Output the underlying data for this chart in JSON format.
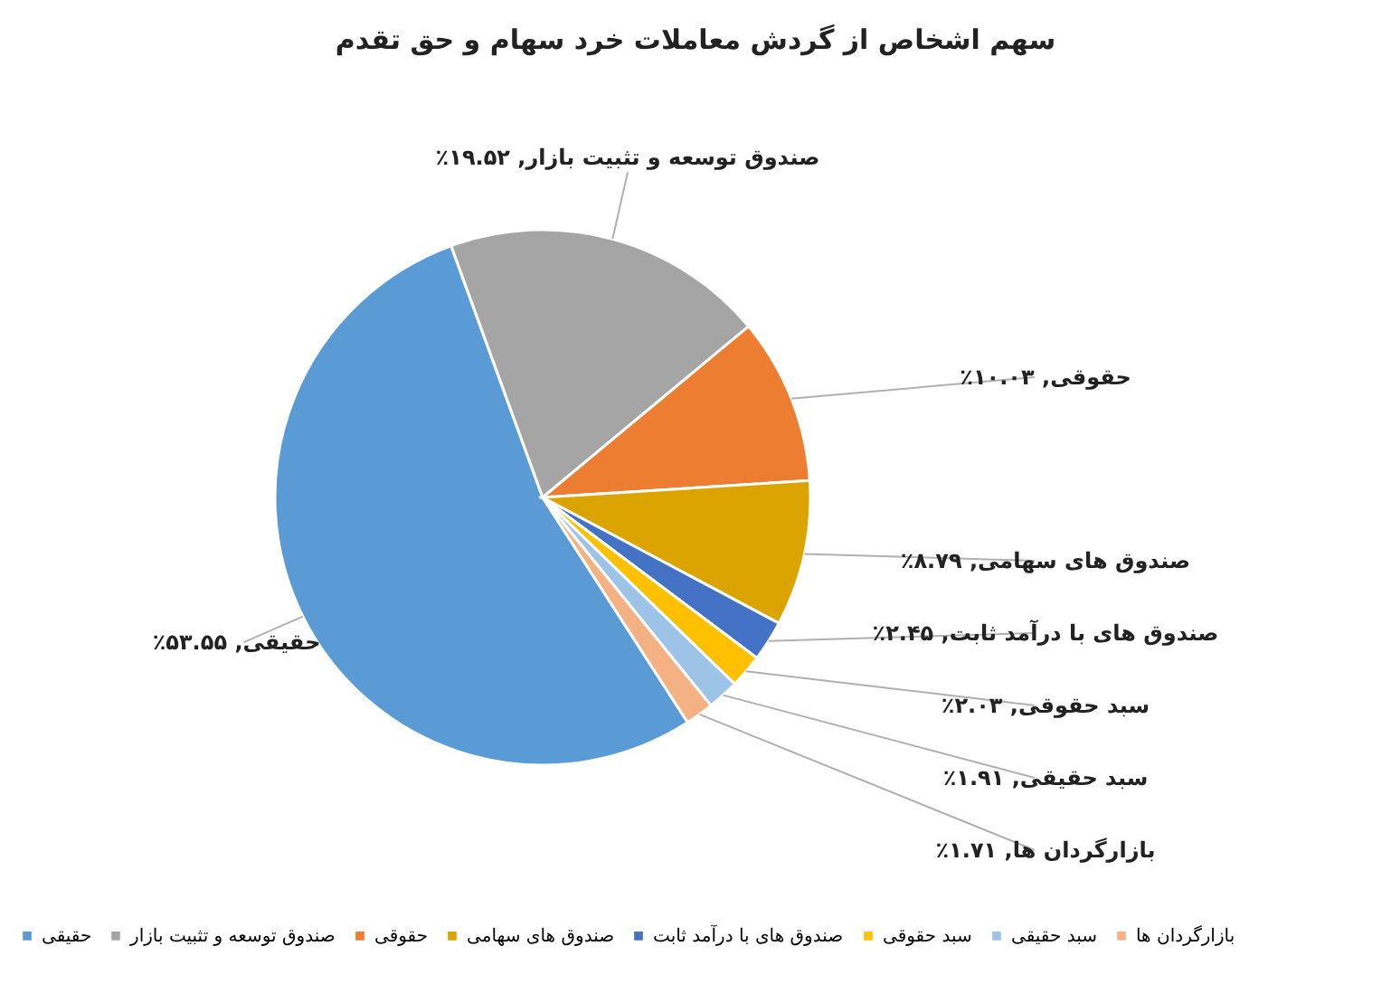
{
  "chart_data": {
    "type": "pie",
    "title": "سهم اشخاص از گردش معاملات خرد سهام و حق تقدم",
    "categories": [
      "حقیقی",
      "صندوق توسعه و تثبیت بازار",
      "حقوقی",
      "صندوق های سهامی",
      "صندوق های با درآمد ثابت",
      "سبد حقوقی",
      "سبد حقیقی",
      "بازارگردان ها"
    ],
    "values": [
      53.55,
      19.52,
      10.03,
      8.79,
      2.45,
      2.03,
      1.91,
      1.71
    ],
    "colors": [
      "#5b9bd5",
      "#a5a5a5",
      "#ed7d31",
      "#dba400",
      "#4472c4",
      "#ffc000",
      "#9dc3e6",
      "#f4b183"
    ],
    "value_labels": [
      "حقیقی, ۵۳.۵۵٪",
      "صندوق توسعه و تثبیت بازار, ۱۹.۵۲٪",
      "حقوقی, ۱۰.۰۳٪",
      "صندوق های سهامی, ۸.۷۹٪",
      "صندوق های با درآمد ثابت, ۲.۴۵٪",
      "سبد حقوقی, ۲.۰۳٪",
      "سبد حقیقی, ۱.۹۱٪",
      "بازارگردان ها, ۱.۷۱٪"
    ],
    "legend": "bottom"
  }
}
